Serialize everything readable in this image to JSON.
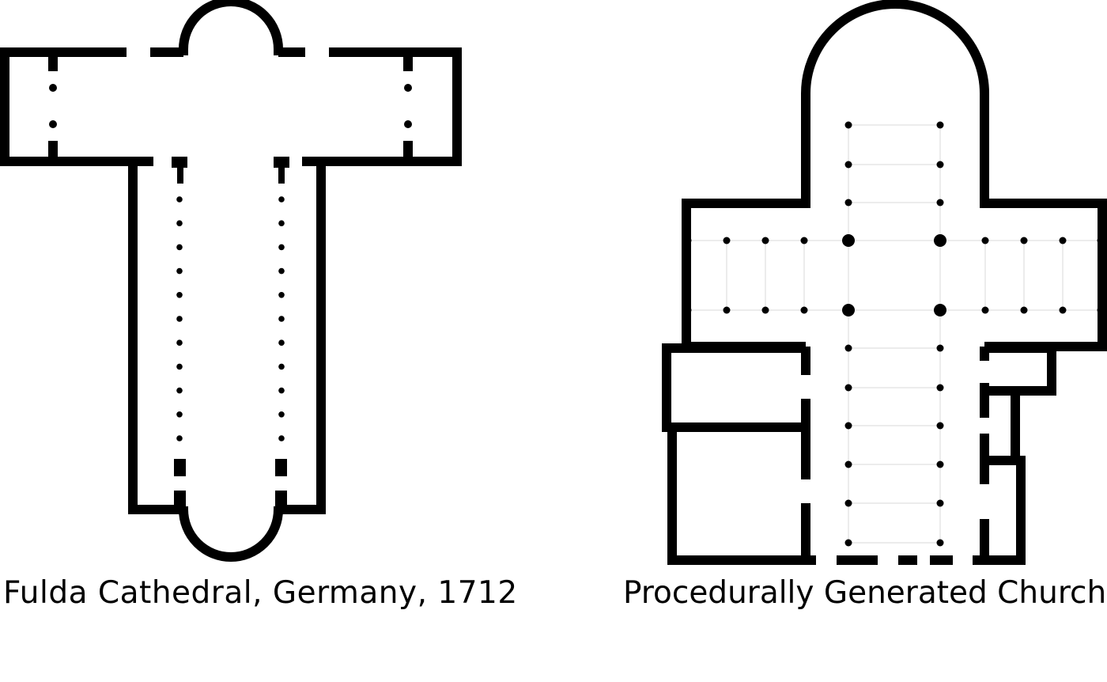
{
  "figures": [
    {
      "id": "left",
      "caption": "Fulda Cathedral, Germany, 1712"
    },
    {
      "id": "right",
      "caption": "Procedurally Generated Church"
    }
  ],
  "colors": {
    "ink": "#000000",
    "background": "#ffffff",
    "guide": "#ececec"
  }
}
